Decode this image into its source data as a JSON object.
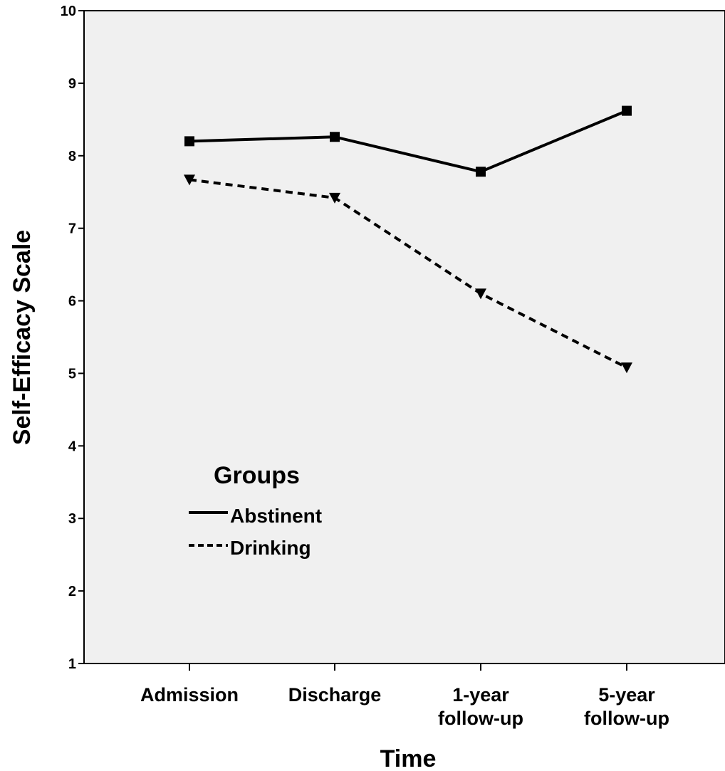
{
  "chart_data": {
    "type": "line",
    "categories": [
      "Admission",
      "Discharge",
      "1-year follow-up",
      "5-year follow-up"
    ],
    "category_lines": [
      [
        "Admission"
      ],
      [
        "Discharge"
      ],
      [
        "1-year",
        "follow-up"
      ],
      [
        "5-year",
        "follow-up"
      ]
    ],
    "series": [
      {
        "name": "Abstinent",
        "values": [
          8.2,
          8.26,
          7.78,
          8.62
        ],
        "style": "solid",
        "marker": "square"
      },
      {
        "name": "Drinking",
        "values": [
          7.67,
          7.42,
          6.1,
          5.08
        ],
        "style": "dashed",
        "marker": "triangle-down"
      }
    ],
    "ylim": [
      1,
      10
    ],
    "yticks": [
      "1",
      "2",
      "3",
      "4",
      "5",
      "6",
      "7",
      "8",
      "9",
      "10"
    ],
    "xlabel": "Time",
    "ylabel": "Self-Efficacy Scale",
    "legend": {
      "title": "Groups",
      "placement": "lower-left-inside"
    },
    "plot_background": "#f0f0f0",
    "line_color": "#000000",
    "grid": false
  }
}
